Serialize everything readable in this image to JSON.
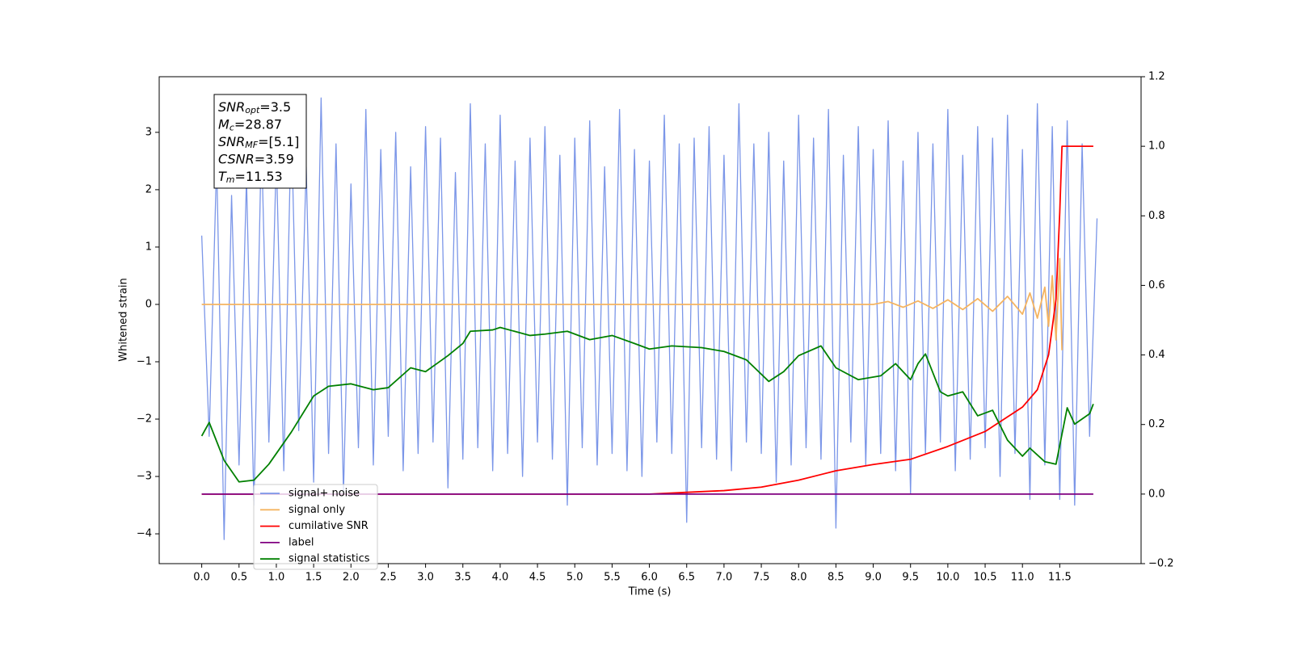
{
  "chart_data": {
    "type": "line",
    "xlabel": "Time (s)",
    "ylabel": "Whitened strain",
    "xlim": [
      -0.57,
      12.59
    ],
    "ylim": [
      -4.52,
      3.97
    ],
    "y2lim": [
      -0.2,
      1.2
    ],
    "xticks": [
      {
        "value": 0,
        "label": "0.0"
      },
      0.5,
      {
        "value": 1,
        "label": "1.0"
      },
      1.5,
      {
        "value": 2,
        "label": "2.0"
      },
      2.5,
      {
        "value": 3,
        "label": "3.0"
      },
      3.5,
      {
        "value": 4,
        "label": "4.0"
      },
      4.5,
      {
        "value": 5,
        "label": "5.0"
      },
      5.5,
      {
        "value": 6,
        "label": "6.0"
      },
      6.5,
      {
        "value": 7,
        "label": "7.0"
      },
      7.5,
      {
        "value": 8,
        "label": "8.0"
      },
      8.5,
      {
        "value": 9,
        "label": "9.0"
      },
      9.5,
      {
        "value": 10,
        "label": "10.0"
      },
      10.5,
      {
        "value": 11,
        "label": "11.0"
      },
      11.5
    ],
    "yticks": [
      {
        "value": -4,
        "label": "−4"
      },
      {
        "value": -3,
        "label": "−3"
      },
      {
        "value": -2,
        "label": "−2"
      },
      {
        "value": -1,
        "label": "−1"
      },
      0,
      1,
      2,
      3
    ],
    "y2ticks": [
      {
        "value": -0.2,
        "label": "−0.2"
      },
      {
        "value": 0,
        "label": "0.0"
      },
      0.2,
      0.4,
      0.6,
      0.8,
      {
        "value": 1,
        "label": "1.0"
      },
      1.2
    ],
    "legend": "lower left",
    "annotations": [
      {
        "base": "SNR",
        "sub": "opt",
        "text": "=3.5"
      },
      {
        "base": "M",
        "sub": "c",
        "text": "=28.87"
      },
      {
        "base": "SNR",
        "sub": "MF",
        "text": "=[5.1]"
      },
      {
        "base": "CSNR",
        "sub": "",
        "text": "=3.59"
      },
      {
        "base": "T",
        "sub": "m",
        "text": "=11.53"
      }
    ],
    "series": [
      {
        "name": "signal+ noise",
        "color": "#7b96e8",
        "axis": "y",
        "x": [
          0,
          0.1,
          0.2,
          0.3,
          0.4,
          0.5,
          0.6,
          0.7,
          0.8,
          0.9,
          1,
          1.1,
          1.2,
          1.3,
          1.4,
          1.5,
          1.6,
          1.7,
          1.8,
          1.9,
          2,
          2.1,
          2.2,
          2.3,
          2.4,
          2.5,
          2.6,
          2.7,
          2.8,
          2.9,
          3,
          3.1,
          3.2,
          3.3,
          3.4,
          3.5,
          3.6,
          3.7,
          3.8,
          3.9,
          4,
          4.1,
          4.2,
          4.3,
          4.4,
          4.5,
          4.6,
          4.7,
          4.8,
          4.9,
          5,
          5.1,
          5.2,
          5.3,
          5.4,
          5.5,
          5.6,
          5.7,
          5.8,
          5.9,
          6,
          6.1,
          6.2,
          6.3,
          6.4,
          6.5,
          6.6,
          6.7,
          6.8,
          6.9,
          7,
          7.1,
          7.2,
          7.3,
          7.4,
          7.5,
          7.6,
          7.7,
          7.8,
          7.9,
          8,
          8.1,
          8.2,
          8.3,
          8.4,
          8.5,
          8.6,
          8.7,
          8.8,
          8.9,
          9,
          9.1,
          9.2,
          9.3,
          9.4,
          9.5,
          9.6,
          9.7,
          9.8,
          9.9,
          10,
          10.1,
          10.2,
          10.3,
          10.4,
          10.5,
          10.6,
          10.7,
          10.8,
          10.9,
          11,
          11.1,
          11.2,
          11.3,
          11.4,
          11.5,
          11.6,
          11.7,
          11.8,
          11.9,
          12
        ],
        "values": [
          1.2,
          -2.3,
          2.5,
          -4.1,
          1.9,
          -2.8,
          2.2,
          -3.5,
          2.9,
          -2.4,
          2.6,
          -2.9,
          3.2,
          -2.2,
          2.4,
          -3.1,
          3.6,
          -2.6,
          2.8,
          -3.3,
          2.1,
          -2.5,
          3.4,
          -2.8,
          2.7,
          -2.3,
          3.0,
          -2.9,
          2.4,
          -2.6,
          3.1,
          -2.4,
          2.9,
          -3.2,
          2.3,
          -2.7,
          3.5,
          -2.5,
          2.8,
          -2.9,
          3.3,
          -2.6,
          2.5,
          -3.0,
          2.9,
          -2.4,
          3.1,
          -2.7,
          2.6,
          -3.5,
          2.9,
          -2.5,
          3.2,
          -2.8,
          2.4,
          -2.6,
          3.4,
          -2.9,
          2.7,
          -3.0,
          2.5,
          -2.4,
          3.3,
          -2.6,
          2.8,
          -3.8,
          2.9,
          -2.5,
          3.1,
          -2.7,
          2.6,
          -2.9,
          3.5,
          -2.4,
          2.8,
          -2.6,
          3.0,
          -3.1,
          2.5,
          -2.8,
          3.3,
          -2.5,
          2.9,
          -2.7,
          3.4,
          -3.9,
          2.6,
          -2.4,
          3.1,
          -2.8,
          2.7,
          -2.6,
          3.2,
          -2.9,
          2.5,
          -3.3,
          3.0,
          -2.6,
          2.8,
          -2.4,
          3.4,
          -2.9,
          2.6,
          -2.7,
          3.1,
          -2.5,
          2.9,
          -3.0,
          3.3,
          -2.6,
          2.7,
          -3.4,
          3.5,
          -2.8,
          3.1,
          -3.4,
          3.2,
          -3.5,
          2.8,
          -2.3,
          1.5
        ]
      },
      {
        "name": "signal only",
        "color": "#f5b461",
        "axis": "y",
        "x": [
          0,
          9.0,
          9.2,
          9.4,
          9.6,
          9.8,
          10.0,
          10.2,
          10.4,
          10.6,
          10.8,
          11.0,
          11.1,
          11.2,
          11.3,
          11.35,
          11.4,
          11.45,
          11.5,
          11.53
        ],
        "values": [
          0,
          0,
          0.05,
          -0.05,
          0.06,
          -0.07,
          0.08,
          -0.09,
          0.1,
          -0.12,
          0.14,
          -0.17,
          0.2,
          -0.24,
          0.3,
          -0.38,
          0.5,
          -0.62,
          0.8,
          -0.8
        ]
      },
      {
        "name": "cumilative SNR",
        "color": "#ff0000",
        "axis": "y2",
        "x": [
          0,
          6.0,
          6.5,
          7.0,
          7.5,
          8.0,
          8.5,
          9.0,
          9.5,
          10.0,
          10.5,
          11.0,
          11.2,
          11.35,
          11.45,
          11.5,
          11.53,
          11.95
        ],
        "values": [
          0,
          0,
          0.005,
          0.01,
          0.02,
          0.04,
          0.067,
          0.085,
          0.1,
          0.137,
          0.18,
          0.25,
          0.3,
          0.4,
          0.56,
          0.81,
          1.0,
          1.0
        ]
      },
      {
        "name": "label",
        "color": "#800080",
        "axis": "y2",
        "x": [
          0,
          11.95
        ],
        "values": [
          0,
          0
        ]
      },
      {
        "name": "signal statistics",
        "color": "#008000",
        "axis": "y2",
        "x": [
          0,
          0.1,
          0.3,
          0.5,
          0.7,
          0.9,
          1.2,
          1.5,
          1.7,
          2.0,
          2.3,
          2.5,
          2.8,
          3.0,
          3.3,
          3.5,
          3.6,
          3.9,
          4.0,
          4.4,
          4.6,
          4.9,
          5.2,
          5.5,
          5.8,
          6.0,
          6.3,
          6.7,
          7.0,
          7.3,
          7.6,
          7.8,
          8.0,
          8.3,
          8.5,
          8.8,
          9.1,
          9.3,
          9.5,
          9.6,
          9.7,
          9.9,
          10.0,
          10.2,
          10.4,
          10.6,
          10.8,
          11.0,
          11.1,
          11.3,
          11.45,
          11.6,
          11.7,
          11.9,
          11.95
        ],
        "values": [
          0.167,
          0.206,
          0.097,
          0.035,
          0.04,
          0.086,
          0.178,
          0.282,
          0.31,
          0.317,
          0.3,
          0.306,
          0.363,
          0.352,
          0.398,
          0.433,
          0.468,
          0.472,
          0.479,
          0.456,
          0.46,
          0.468,
          0.444,
          0.456,
          0.433,
          0.417,
          0.426,
          0.421,
          0.41,
          0.386,
          0.324,
          0.352,
          0.398,
          0.426,
          0.363,
          0.329,
          0.34,
          0.375,
          0.329,
          0.375,
          0.403,
          0.294,
          0.282,
          0.294,
          0.225,
          0.241,
          0.155,
          0.109,
          0.132,
          0.093,
          0.086,
          0.248,
          0.201,
          0.231,
          0.259
        ]
      }
    ]
  }
}
